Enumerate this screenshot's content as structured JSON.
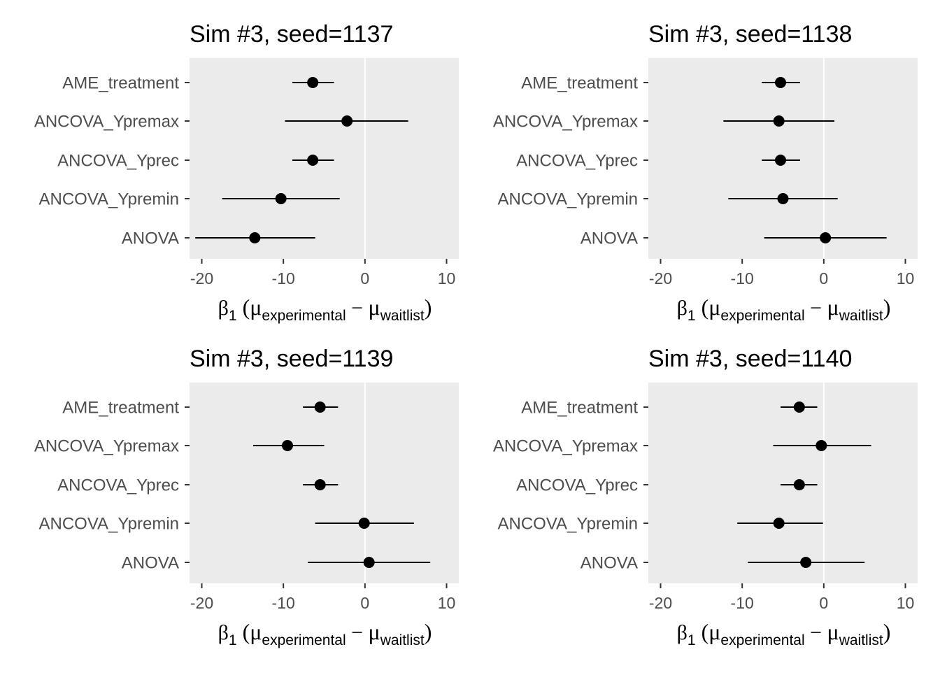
{
  "chart_data": [
    {
      "type": "errorbar",
      "title": "Sim #3, seed=1137",
      "x_ticks": [
        -20,
        -10,
        0,
        10
      ],
      "xlim": [
        -21.5,
        11.5
      ],
      "reference_line": 0,
      "categories": [
        "AME_treatment",
        "ANCOVA_Ypremax",
        "ANCOVA_Yprec",
        "ANCOVA_Ypremin",
        "ANOVA"
      ],
      "estimates": [
        -6.4,
        -2.2,
        -6.4,
        -10.3,
        -13.5
      ],
      "lower": [
        -8.9,
        -9.8,
        -8.9,
        -17.5,
        -20.8
      ],
      "upper": [
        -3.8,
        5.3,
        -3.8,
        -3.1,
        -6.1
      ],
      "xlabel": {
        "beta": "β",
        "beta_sub": "1",
        "mu1_sub": "experimental",
        "mu2_sub": "waitlist"
      }
    },
    {
      "type": "errorbar",
      "title": "Sim #3, seed=1138",
      "x_ticks": [
        -20,
        -10,
        0,
        10
      ],
      "xlim": [
        -21.5,
        11.5
      ],
      "reference_line": 0,
      "categories": [
        "AME_treatment",
        "ANCOVA_Ypremax",
        "ANCOVA_Yprec",
        "ANCOVA_Ypremin",
        "ANOVA"
      ],
      "estimates": [
        -5.3,
        -5.5,
        -5.3,
        -5.0,
        0.2
      ],
      "lower": [
        -7.6,
        -12.3,
        -7.6,
        -11.7,
        -7.3
      ],
      "upper": [
        -2.9,
        1.3,
        -2.9,
        1.7,
        7.7
      ],
      "xlabel": {
        "beta": "β",
        "beta_sub": "1",
        "mu1_sub": "experimental",
        "mu2_sub": "waitlist"
      }
    },
    {
      "type": "errorbar",
      "title": "Sim #3, seed=1139",
      "x_ticks": [
        -20,
        -10,
        0,
        10
      ],
      "xlim": [
        -21.5,
        11.5
      ],
      "reference_line": 0,
      "categories": [
        "AME_treatment",
        "ANCOVA_Ypremax",
        "ANCOVA_Yprec",
        "ANCOVA_Ypremin",
        "ANOVA"
      ],
      "estimates": [
        -5.5,
        -9.5,
        -5.5,
        -0.1,
        0.5
      ],
      "lower": [
        -7.6,
        -13.7,
        -7.6,
        -6.1,
        -7.0
      ],
      "upper": [
        -3.3,
        -5.0,
        -3.3,
        6.0,
        8.0
      ],
      "xlabel": {
        "beta": "β",
        "beta_sub": "1",
        "mu1_sub": "experimental",
        "mu2_sub": "waitlist"
      }
    },
    {
      "type": "errorbar",
      "title": "Sim #3, seed=1140",
      "x_ticks": [
        -20,
        -10,
        0,
        10
      ],
      "xlim": [
        -21.5,
        11.5
      ],
      "reference_line": 0,
      "categories": [
        "AME_treatment",
        "ANCOVA_Ypremax",
        "ANCOVA_Yprec",
        "ANCOVA_Ypremin",
        "ANOVA"
      ],
      "estimates": [
        -3.0,
        -0.3,
        -3.0,
        -5.5,
        -2.2
      ],
      "lower": [
        -5.3,
        -6.2,
        -5.3,
        -10.6,
        -9.3
      ],
      "upper": [
        -0.8,
        5.8,
        -0.8,
        -0.1,
        5.0
      ],
      "xlabel": {
        "beta": "β",
        "beta_sub": "1",
        "mu1_sub": "experimental",
        "mu2_sub": "waitlist"
      }
    }
  ]
}
